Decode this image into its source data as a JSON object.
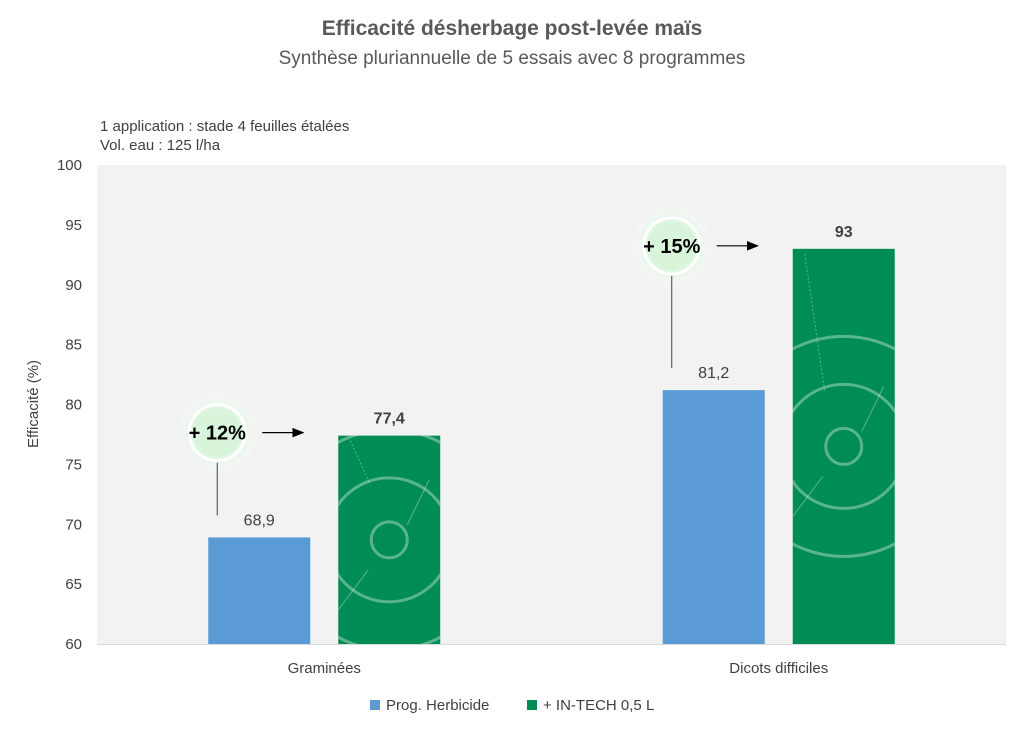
{
  "chart_data": {
    "type": "bar",
    "title": "Efficacité désherbage post-levée maïs",
    "subtitle": "Synthèse pluriannuelle de 5 essais avec 8 programmes",
    "notes": [
      "1 application : stade  4 feuilles étalées",
      "Vol. eau : 125 l/ha"
    ],
    "ylabel": "Efficacité (%)",
    "xlabel": "",
    "ylim": [
      60,
      100
    ],
    "yticks": [
      60,
      65,
      70,
      75,
      80,
      85,
      90,
      95,
      100
    ],
    "categories": [
      "Graminées",
      "Dicots difficiles"
    ],
    "series": [
      {
        "name": "Prog. Herbicide",
        "values": [
          68.9,
          81.2
        ],
        "labels": [
          "68,9",
          "81,2"
        ],
        "color": "#5b9bd5"
      },
      {
        "name": "+ IN-TECH 0,5 L",
        "values": [
          77.4,
          93
        ],
        "labels": [
          "77,4",
          "93"
        ],
        "color": "#008c55"
      }
    ],
    "annotations": [
      "+ 12%",
      "+ 15%"
    ],
    "grid": false,
    "legend": "bottom-center",
    "plot_background": "#f2f2f2"
  }
}
